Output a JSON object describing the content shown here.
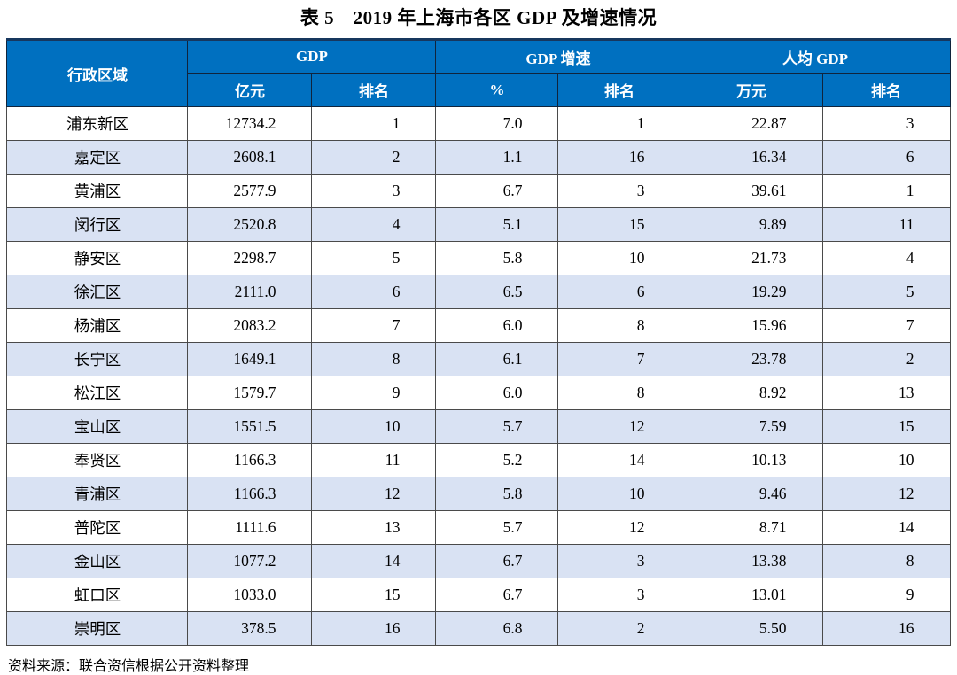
{
  "title": "表 5　2019 年上海市各区 GDP 及增速情况",
  "source": "资料来源：联合资信根据公开资料整理",
  "colors": {
    "header_background": "#0070c0",
    "header_text": "#ffffff",
    "stripe_row": "#d9e2f3",
    "top_border": "#17375e",
    "grid_line": "#4a4a4a"
  },
  "table": {
    "header": {
      "region": "行政区域",
      "groups": [
        {
          "label": "GDP",
          "sub": [
            "亿元",
            "排名"
          ]
        },
        {
          "label": "GDP 增速",
          "sub": [
            "%",
            "排名"
          ]
        },
        {
          "label": "人均 GDP",
          "sub": [
            "万元",
            "排名"
          ]
        }
      ]
    },
    "rows": [
      {
        "region": "浦东新区",
        "gdp": "12734.2",
        "gdp_rank": "1",
        "growth": "7.0",
        "growth_rank": "1",
        "per_capita": "22.87",
        "per_capita_rank": "3"
      },
      {
        "region": "嘉定区",
        "gdp": "2608.1",
        "gdp_rank": "2",
        "growth": "1.1",
        "growth_rank": "16",
        "per_capita": "16.34",
        "per_capita_rank": "6"
      },
      {
        "region": "黄浦区",
        "gdp": "2577.9",
        "gdp_rank": "3",
        "growth": "6.7",
        "growth_rank": "3",
        "per_capita": "39.61",
        "per_capita_rank": "1"
      },
      {
        "region": "闵行区",
        "gdp": "2520.8",
        "gdp_rank": "4",
        "growth": "5.1",
        "growth_rank": "15",
        "per_capita": "9.89",
        "per_capita_rank": "11"
      },
      {
        "region": "静安区",
        "gdp": "2298.7",
        "gdp_rank": "5",
        "growth": "5.8",
        "growth_rank": "10",
        "per_capita": "21.73",
        "per_capita_rank": "4"
      },
      {
        "region": "徐汇区",
        "gdp": "2111.0",
        "gdp_rank": "6",
        "growth": "6.5",
        "growth_rank": "6",
        "per_capita": "19.29",
        "per_capita_rank": "5"
      },
      {
        "region": "杨浦区",
        "gdp": "2083.2",
        "gdp_rank": "7",
        "growth": "6.0",
        "growth_rank": "8",
        "per_capita": "15.96",
        "per_capita_rank": "7"
      },
      {
        "region": "长宁区",
        "gdp": "1649.1",
        "gdp_rank": "8",
        "growth": "6.1",
        "growth_rank": "7",
        "per_capita": "23.78",
        "per_capita_rank": "2"
      },
      {
        "region": "松江区",
        "gdp": "1579.7",
        "gdp_rank": "9",
        "growth": "6.0",
        "growth_rank": "8",
        "per_capita": "8.92",
        "per_capita_rank": "13"
      },
      {
        "region": "宝山区",
        "gdp": "1551.5",
        "gdp_rank": "10",
        "growth": "5.7",
        "growth_rank": "12",
        "per_capita": "7.59",
        "per_capita_rank": "15"
      },
      {
        "region": "奉贤区",
        "gdp": "1166.3",
        "gdp_rank": "11",
        "growth": "5.2",
        "growth_rank": "14",
        "per_capita": "10.13",
        "per_capita_rank": "10"
      },
      {
        "region": "青浦区",
        "gdp": "1166.3",
        "gdp_rank": "12",
        "growth": "5.8",
        "growth_rank": "10",
        "per_capita": "9.46",
        "per_capita_rank": "12"
      },
      {
        "region": "普陀区",
        "gdp": "1111.6",
        "gdp_rank": "13",
        "growth": "5.7",
        "growth_rank": "12",
        "per_capita": "8.71",
        "per_capita_rank": "14"
      },
      {
        "region": "金山区",
        "gdp": "1077.2",
        "gdp_rank": "14",
        "growth": "6.7",
        "growth_rank": "3",
        "per_capita": "13.38",
        "per_capita_rank": "8"
      },
      {
        "region": "虹口区",
        "gdp": "1033.0",
        "gdp_rank": "15",
        "growth": "6.7",
        "growth_rank": "3",
        "per_capita": "13.01",
        "per_capita_rank": "9"
      },
      {
        "region": "崇明区",
        "gdp": "378.5",
        "gdp_rank": "16",
        "growth": "6.8",
        "growth_rank": "2",
        "per_capita": "5.50",
        "per_capita_rank": "16"
      }
    ]
  }
}
